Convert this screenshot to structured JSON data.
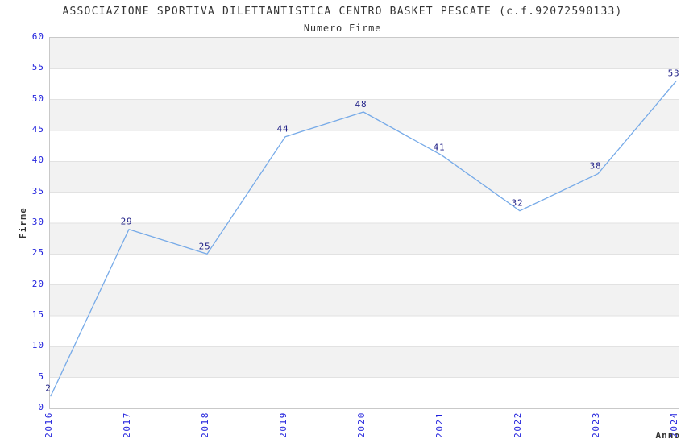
{
  "chart_data": {
    "type": "line",
    "title": "ASSOCIAZIONE SPORTIVA DILETTANTISTICA CENTRO BASKET PESCATE (c.f.92072590133)",
    "subtitle": "Numero Firme",
    "xlabel": "Anno",
    "ylabel": "Firme",
    "categories": [
      "2016",
      "2017",
      "2018",
      "2019",
      "2020",
      "2021",
      "2022",
      "2023",
      "2024"
    ],
    "values": [
      2,
      29,
      25,
      44,
      48,
      41,
      32,
      38,
      53
    ],
    "ylim": [
      0,
      60
    ],
    "ytick_step": 5,
    "ytick_labels": [
      "0",
      "5",
      "10",
      "15",
      "20",
      "25",
      "30",
      "35",
      "40",
      "45",
      "50",
      "55",
      "60"
    ],
    "grid": "horizontal gridlines with alternating gray bands",
    "legend": "none",
    "colors": {
      "line": "#76aae8",
      "band": "#f2f2f2",
      "gridline": "#e2e2e2",
      "plot_border": "#c9c9c9",
      "axis_tick_label": "#2222dd",
      "data_label": "#222288",
      "text": "#333333",
      "background": "#ffffff"
    }
  }
}
